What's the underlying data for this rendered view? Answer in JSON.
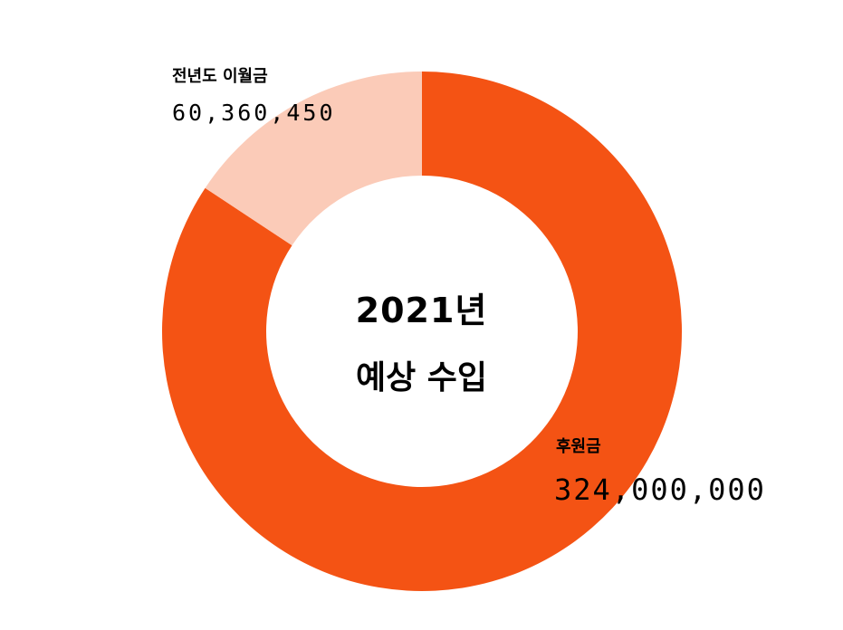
{
  "chart_data": {
    "type": "pie",
    "style": "donut",
    "center_title": "2021년",
    "center_subtitle": "예상 수입",
    "slices": [
      {
        "name": "후원금",
        "value_label": "324,000,000",
        "value": 324000000,
        "color": "#f45314"
      },
      {
        "name": "전년도 이월금",
        "value_label": "60,360,450",
        "value": 60360450,
        "color": "#fbcbb8"
      }
    ],
    "start_angle_deg": 0,
    "direction": "clockwise"
  }
}
